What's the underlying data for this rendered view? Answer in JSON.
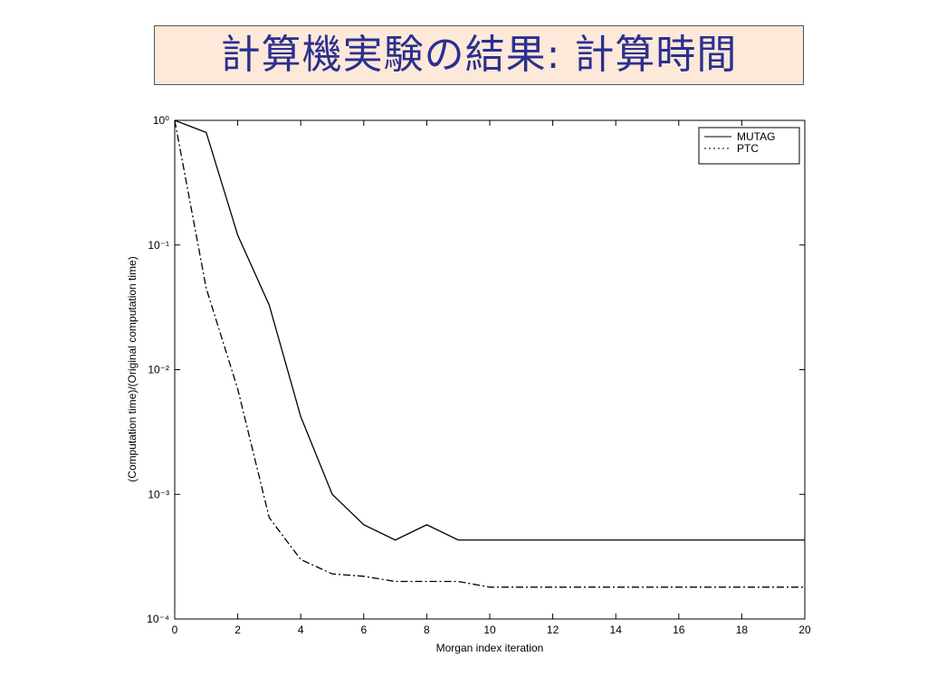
{
  "slide_title": "計算機実験の結果:  計算時間",
  "chart_data": {
    "type": "line",
    "xlabel": "Morgan index iteration",
    "ylabel": "(Computation time)/(Original computation time)",
    "x": [
      0,
      1,
      2,
      3,
      4,
      5,
      6,
      7,
      8,
      9,
      10,
      11,
      12,
      13,
      14,
      15,
      16,
      17,
      18,
      19,
      20
    ],
    "series": [
      {
        "name": "MUTAG",
        "color": "#000000",
        "linestyle": "solid",
        "values": [
          1,
          0.8,
          0.12,
          0.033,
          0.0042,
          0.001,
          0.00057,
          0.00043,
          0.00057,
          0.00043,
          0.00043,
          0.00043,
          0.00043,
          0.00043,
          0.00043,
          0.00043,
          0.00043,
          0.00043,
          0.00043,
          0.00043,
          0.00043
        ]
      },
      {
        "name": "PTC",
        "color": "#000000",
        "linestyle": "dashdot",
        "values": [
          1,
          0.045,
          0.007,
          0.00065,
          0.0003,
          0.00023,
          0.00022,
          0.0002,
          0.0002,
          0.0002,
          0.00018,
          0.00018,
          0.00018,
          0.00018,
          0.00018,
          0.00018,
          0.00018,
          0.00018,
          0.00018,
          0.00018,
          0.00018
        ]
      }
    ],
    "xlim": [
      0,
      20
    ],
    "xticks": [
      0,
      2,
      4,
      6,
      8,
      10,
      12,
      14,
      16,
      18,
      20
    ],
    "ylim": [
      0.0001,
      1
    ],
    "yscale": "log",
    "yticks": [
      {
        "value": 0.0001,
        "label": "10⁻⁴"
      },
      {
        "value": 0.001,
        "label": "10⁻³"
      },
      {
        "value": 0.01,
        "label": "10⁻²"
      },
      {
        "value": 0.1,
        "label": "10⁻¹"
      },
      {
        "value": 1,
        "label": "10⁰"
      }
    ],
    "legend": "upper right"
  }
}
